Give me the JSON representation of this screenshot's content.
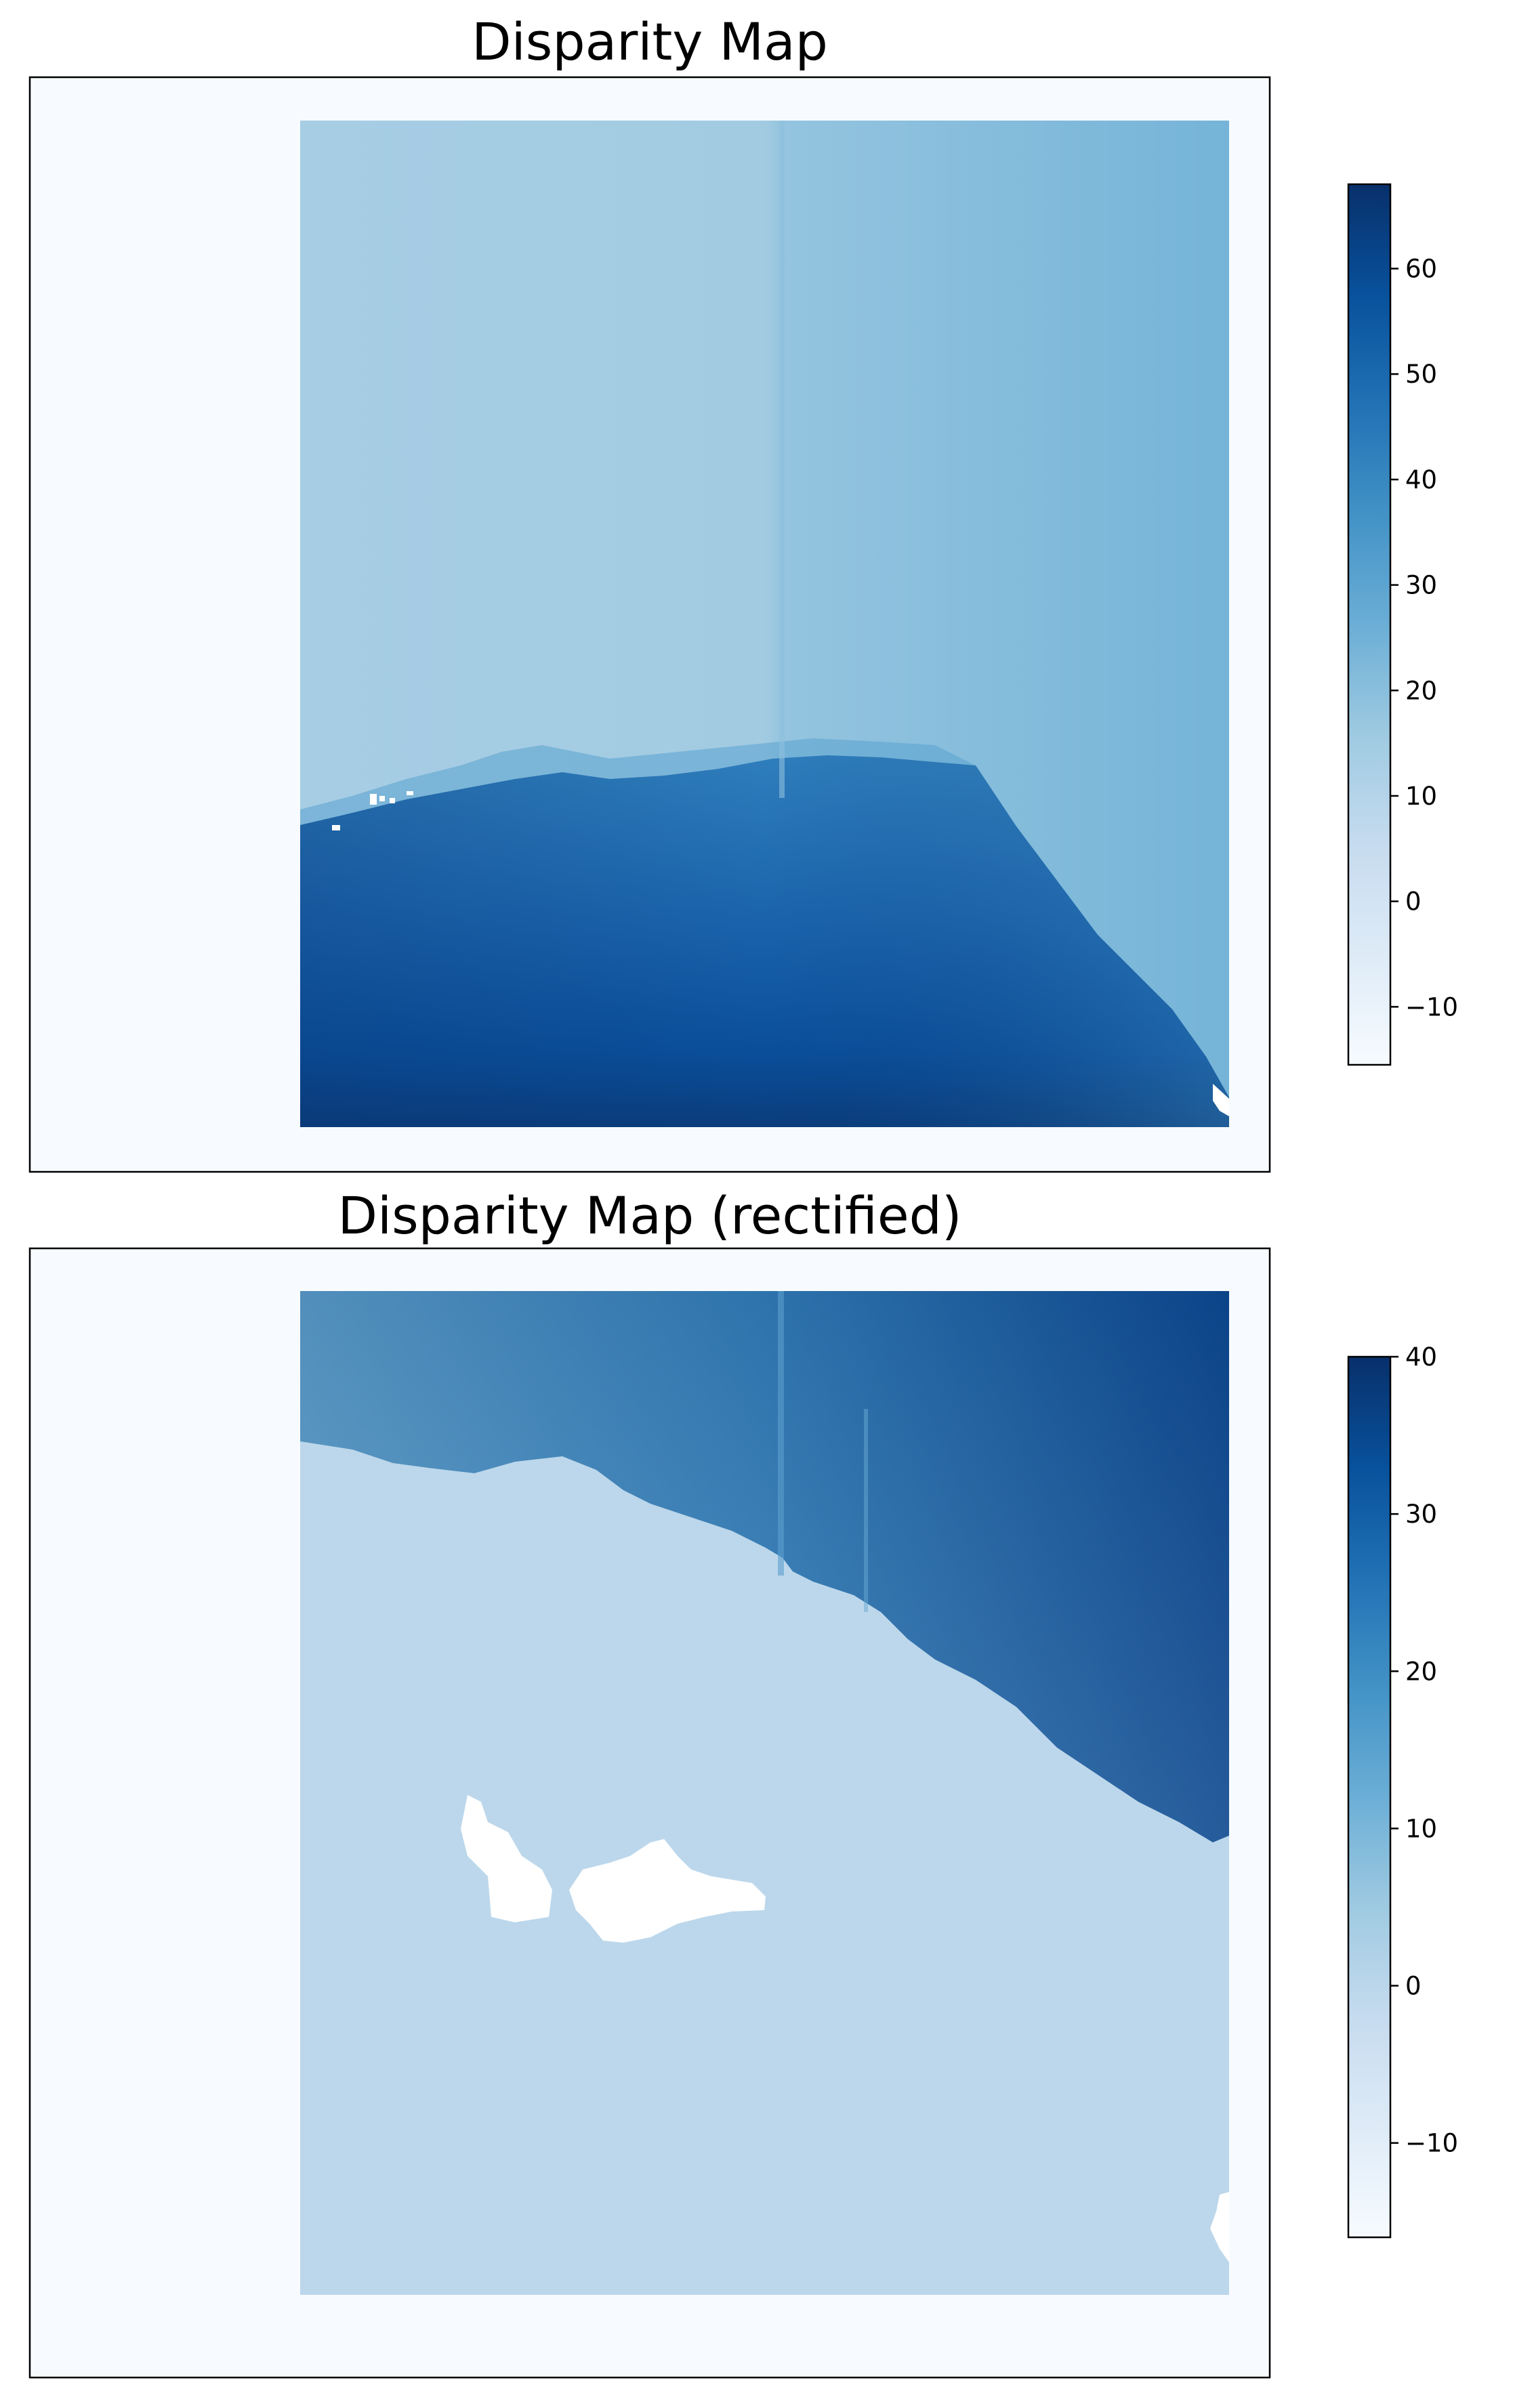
{
  "chart_data": [
    {
      "type": "heatmap",
      "title": "Disparity Map",
      "colormap": "Blues",
      "axes_ticks_visible": false,
      "colorbar": {
        "vmin": -15.5,
        "vmax": 68,
        "ticks": [
          -10,
          0,
          10,
          20,
          30,
          40,
          50,
          60
        ],
        "tick_labels": [
          "−10",
          "0",
          "10",
          "20",
          "30",
          "40",
          "50",
          "60"
        ]
      },
      "regions": [
        {
          "name": "background",
          "value": -15
        },
        {
          "name": "upper-scene",
          "value": 15
        },
        {
          "name": "lower-scene",
          "value": 55
        }
      ]
    },
    {
      "type": "heatmap",
      "title": "Disparity Map (rectified)",
      "colormap": "Blues",
      "axes_ticks_visible": false,
      "colorbar": {
        "vmin": -16,
        "vmax": 40,
        "ticks": [
          -10,
          0,
          10,
          20,
          30,
          40
        ],
        "tick_labels": [
          "−10",
          "0",
          "10",
          "20",
          "30",
          "40"
        ]
      },
      "regions": [
        {
          "name": "background",
          "value": -15
        },
        {
          "name": "upper-scene",
          "value": 25
        },
        {
          "name": "lower-scene",
          "value": 5
        }
      ]
    }
  ]
}
